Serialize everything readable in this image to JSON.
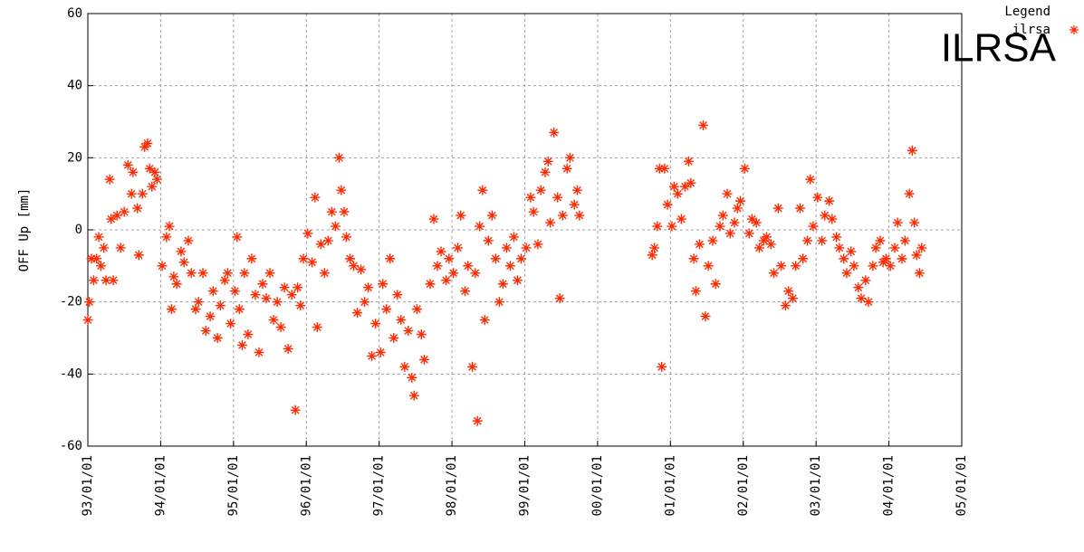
{
  "chart_data": {
    "type": "scatter",
    "ylabel": "OFF Up [mm]",
    "annotation": "ILRSA",
    "legend_title": "Legend",
    "grid": true,
    "xlim": [
      1993,
      2005
    ],
    "ylim": [
      -60,
      60
    ],
    "yticks": [
      -60,
      -40,
      -20,
      0,
      20,
      40,
      60
    ],
    "xticks": [
      {
        "value": 1993,
        "label": "93/01/01"
      },
      {
        "value": 1994,
        "label": "94/01/01"
      },
      {
        "value": 1995,
        "label": "95/01/01"
      },
      {
        "value": 1996,
        "label": "96/01/01"
      },
      {
        "value": 1997,
        "label": "97/01/01"
      },
      {
        "value": 1998,
        "label": "98/01/01"
      },
      {
        "value": 1999,
        "label": "99/01/01"
      },
      {
        "value": 2000,
        "label": "00/01/01"
      },
      {
        "value": 2001,
        "label": "01/01/01"
      },
      {
        "value": 2002,
        "label": "02/01/01"
      },
      {
        "value": 2003,
        "label": "03/01/01"
      },
      {
        "value": 2004,
        "label": "04/01/01"
      },
      {
        "value": 2005,
        "label": "05/01/01"
      }
    ],
    "series": [
      {
        "name": "ilrsa",
        "color": "#ff2a00",
        "x": [
          1993.0,
          1993.02,
          1993.05,
          1993.08,
          1993.12,
          1993.15,
          1993.18,
          1993.22,
          1993.25,
          1993.3,
          1993.32,
          1993.35,
          1993.4,
          1993.45,
          1993.5,
          1993.55,
          1993.6,
          1993.62,
          1993.68,
          1993.7,
          1993.75,
          1993.78,
          1993.82,
          1993.85,
          1993.88,
          1993.92,
          1993.95,
          1994.02,
          1994.08,
          1994.12,
          1994.15,
          1994.18,
          1994.22,
          1994.28,
          1994.32,
          1994.38,
          1994.42,
          1994.48,
          1994.52,
          1994.58,
          1994.62,
          1994.68,
          1994.72,
          1994.78,
          1994.82,
          1994.88,
          1994.92,
          1994.96,
          1995.02,
          1995.05,
          1995.08,
          1995.12,
          1995.15,
          1995.2,
          1995.25,
          1995.3,
          1995.35,
          1995.4,
          1995.45,
          1995.5,
          1995.55,
          1995.6,
          1995.65,
          1995.7,
          1995.75,
          1995.8,
          1995.85,
          1995.88,
          1995.92,
          1995.96,
          1996.02,
          1996.08,
          1996.12,
          1996.15,
          1996.2,
          1996.25,
          1996.3,
          1996.35,
          1996.4,
          1996.45,
          1996.48,
          1996.52,
          1996.55,
          1996.6,
          1996.65,
          1996.7,
          1996.75,
          1996.8,
          1996.85,
          1996.9,
          1996.95,
          1997.02,
          1997.05,
          1997.1,
          1997.15,
          1997.2,
          1997.25,
          1997.3,
          1997.35,
          1997.4,
          1997.45,
          1997.48,
          1997.52,
          1997.58,
          1997.62,
          1997.7,
          1997.75,
          1997.8,
          1997.85,
          1997.92,
          1997.96,
          1998.02,
          1998.08,
          1998.12,
          1998.18,
          1998.22,
          1998.28,
          1998.32,
          1998.35,
          1998.38,
          1998.42,
          1998.45,
          1998.5,
          1998.55,
          1998.6,
          1998.65,
          1998.7,
          1998.75,
          1998.8,
          1998.85,
          1998.9,
          1998.95,
          1999.02,
          1999.08,
          1999.12,
          1999.18,
          1999.22,
          1999.28,
          1999.32,
          1999.35,
          1999.4,
          1999.45,
          1999.48,
          1999.52,
          1999.58,
          1999.62,
          1999.68,
          1999.72,
          1999.75,
          2000.75,
          2000.78,
          2000.82,
          2000.85,
          2000.88,
          2000.92,
          2000.96,
          2001.02,
          2001.05,
          2001.1,
          2001.15,
          2001.2,
          2001.25,
          2001.28,
          2001.32,
          2001.35,
          2001.4,
          2001.45,
          2001.48,
          2001.52,
          2001.58,
          2001.62,
          2001.68,
          2001.72,
          2001.78,
          2001.82,
          2001.88,
          2001.92,
          2001.96,
          2002.02,
          2002.08,
          2002.12,
          2002.18,
          2002.22,
          2002.28,
          2002.32,
          2002.38,
          2002.42,
          2002.48,
          2002.52,
          2002.58,
          2002.62,
          2002.68,
          2002.72,
          2002.78,
          2002.82,
          2002.88,
          2002.92,
          2002.96,
          2003.02,
          2003.08,
          2003.12,
          2003.18,
          2003.22,
          2003.28,
          2003.32,
          2003.38,
          2003.42,
          2003.48,
          2003.52,
          2003.58,
          2003.62,
          2003.68,
          2003.72,
          2003.78,
          2003.82,
          2003.88,
          2003.92,
          2003.96,
          2004.02,
          2004.08,
          2004.12,
          2004.18,
          2004.22,
          2004.28,
          2004.32,
          2004.35,
          2004.38,
          2004.42,
          2004.45
        ],
        "values": [
          -25,
          -20,
          -8,
          -14,
          -8,
          -2,
          -10,
          -5,
          -14,
          14,
          3,
          -14,
          4,
          -5,
          5,
          18,
          10,
          16,
          6,
          -7,
          10,
          23,
          24,
          17,
          12,
          16,
          14,
          -10,
          -2,
          1,
          -22,
          -13,
          -15,
          -6,
          -9,
          -3,
          -12,
          -22,
          -20,
          -12,
          -28,
          -24,
          -17,
          -30,
          -21,
          -14,
          -12,
          -26,
          -17,
          -2,
          -22,
          -32,
          -12,
          -29,
          -8,
          -18,
          -34,
          -15,
          -19,
          -12,
          -25,
          -20,
          -27,
          -16,
          -33,
          -18,
          -50,
          -16,
          -21,
          -8,
          -1,
          -9,
          9,
          -27,
          -4,
          -12,
          -3,
          5,
          1,
          20,
          11,
          5,
          -2,
          -8,
          -10,
          -23,
          -11,
          -20,
          -16,
          -35,
          -26,
          -34,
          -15,
          -22,
          -8,
          -30,
          -18,
          -25,
          -38,
          -28,
          -41,
          -46,
          -22,
          -29,
          -36,
          -15,
          3,
          -10,
          -6,
          -14,
          -8,
          -12,
          -5,
          4,
          -17,
          -10,
          -38,
          -12,
          -53,
          1,
          11,
          -25,
          -3,
          4,
          -8,
          -20,
          -15,
          -5,
          -10,
          -2,
          -14,
          -8,
          -5,
          9,
          5,
          -4,
          11,
          16,
          19,
          2,
          27,
          9,
          -19,
          4,
          17,
          20,
          7,
          11,
          4,
          -7,
          -5,
          1,
          17,
          -38,
          17,
          7,
          1,
          12,
          10,
          3,
          12,
          19,
          13,
          -8,
          -17,
          -4,
          29,
          -24,
          -10,
          -3,
          -15,
          1,
          4,
          10,
          -1,
          2,
          6,
          8,
          17,
          -1,
          3,
          2,
          -5,
          -3,
          -2,
          -4,
          -12,
          6,
          -10,
          -21,
          -17,
          -19,
          -10,
          6,
          -8,
          -3,
          14,
          1,
          9,
          -3,
          4,
          8,
          3,
          -2,
          -5,
          -8,
          -12,
          -6,
          -10,
          -16,
          -19,
          -14,
          -20,
          -10,
          -5,
          -3,
          -9,
          -8,
          -10,
          -5,
          2,
          -8,
          -3,
          10,
          22,
          2,
          -7,
          -12,
          -5
        ]
      }
    ]
  }
}
